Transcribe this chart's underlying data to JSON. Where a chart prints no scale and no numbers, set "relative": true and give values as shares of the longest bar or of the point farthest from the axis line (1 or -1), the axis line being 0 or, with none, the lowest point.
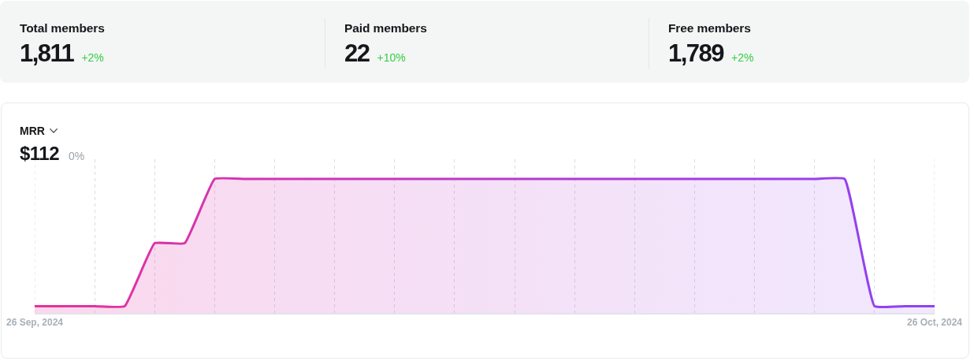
{
  "chart_data": [
    {
      "type": "other",
      "title": "Total members",
      "annotations": [
        "1,811",
        "+2%"
      ]
    },
    {
      "type": "other",
      "title": "Paid members",
      "annotations": [
        "22",
        "+10%"
      ]
    },
    {
      "type": "other",
      "title": "Free members",
      "annotations": [
        "1,789",
        "+2%"
      ]
    },
    {
      "type": "area",
      "title": "MRR",
      "subtitle": "$112",
      "annotations": [
        "0%"
      ],
      "relative": true,
      "x": [
        "2024-09-26",
        "2024-09-27",
        "2024-09-28",
        "2024-09-29",
        "2024-09-30",
        "2024-10-01",
        "2024-10-02",
        "2024-10-03",
        "2024-10-04",
        "2024-10-05",
        "2024-10-06",
        "2024-10-07",
        "2024-10-08",
        "2024-10-09",
        "2024-10-10",
        "2024-10-11",
        "2024-10-12",
        "2024-10-13",
        "2024-10-14",
        "2024-10-15",
        "2024-10-16",
        "2024-10-17",
        "2024-10-18",
        "2024-10-19",
        "2024-10-20",
        "2024-10-21",
        "2024-10-22",
        "2024-10-23",
        "2024-10-24",
        "2024-10-25",
        "2024-10-26"
      ],
      "series": [
        {
          "colors": [
            "#e8309c",
            "#e5319f",
            "#e231a2",
            "#df32a5",
            "#dc32a8",
            "#d933ab",
            "#d634ae",
            "#d334b1",
            "#d035b4",
            "#cd35b7",
            "#ca36ba",
            "#c737bd",
            "#c437c0",
            "#c138c3",
            "#be38c6",
            "#ba39c9",
            "#b73acc",
            "#b43acf",
            "#b13bd2",
            "#ae3bd5",
            "#ab3cd8",
            "#a83ddb",
            "#a53dde",
            "#a23ee1",
            "#9f3ee4",
            "#9c3fe7",
            "#9940ea",
            "#9640ed",
            "#9341f0",
            "#9041f3",
            "#8d42f6"
          ],
          "values": [
            0.05,
            0.05,
            0.05,
            0.05,
            0.52,
            0.52,
            1,
            1,
            1,
            1,
            1,
            1,
            1,
            1,
            1,
            1,
            1,
            1,
            1,
            1,
            1,
            1,
            1,
            1,
            1,
            1,
            1,
            1,
            0.05,
            0.05,
            0.05
          ]
        }
      ],
      "xlim": [
        "2024-09-26",
        "2024-10-26"
      ],
      "xticks": [
        {
          "value": "2024-09-26",
          "label": "26 Sep, 2024"
        },
        {
          "value": "2024-09-28",
          "label": null
        },
        {
          "value": "2024-09-30",
          "label": null
        },
        {
          "value": "2024-10-02",
          "label": null
        },
        {
          "value": "2024-10-04",
          "label": null
        },
        {
          "value": "2024-10-06",
          "label": null
        },
        {
          "value": "2024-10-08",
          "label": null
        },
        {
          "value": "2024-10-10",
          "label": null
        },
        {
          "value": "2024-10-12",
          "label": null
        },
        {
          "value": "2024-10-14",
          "label": null
        },
        {
          "value": "2024-10-16",
          "label": null
        },
        {
          "value": "2024-10-18",
          "label": null
        },
        {
          "value": "2024-10-20",
          "label": null
        },
        {
          "value": "2024-10-22",
          "label": null
        },
        {
          "value": "2024-10-24",
          "label": null
        },
        {
          "value": "2024-10-26",
          "label": "26 Oct, 2024"
        }
      ],
      "grid": "x"
    }
  ]
}
